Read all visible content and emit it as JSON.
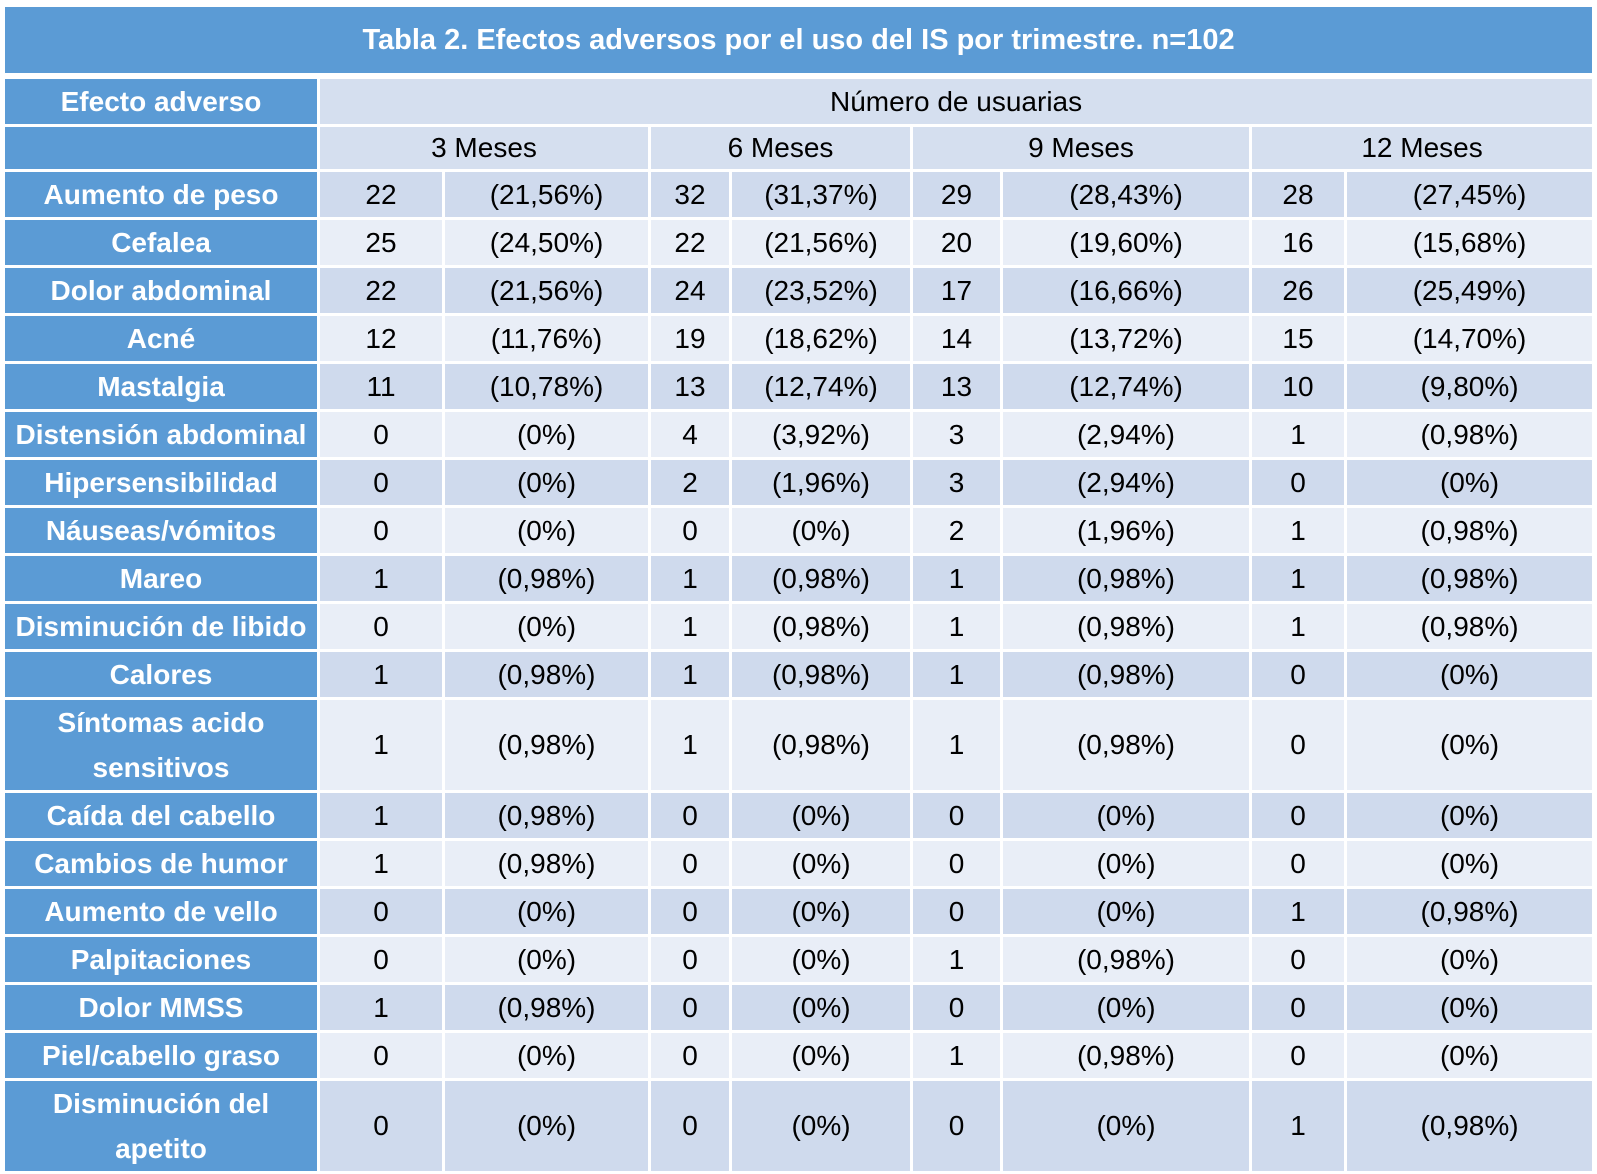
{
  "title": "Tabla 2. Efectos adversos por el uso del IS por trimestre. n=102",
  "header": {
    "col_label": "Efecto adverso",
    "group_label": "Número de usuarias",
    "periods": [
      "3 Meses",
      "6 Meses",
      "9 Meses",
      "12 Meses"
    ]
  },
  "rows": [
    {
      "label": "Aumento de peso",
      "values": [
        "22",
        "(21,56%)",
        "32",
        "(31,37%)",
        "29",
        "(28,43%)",
        "28",
        "(27,45%)"
      ]
    },
    {
      "label": "Cefalea",
      "values": [
        "25",
        "(24,50%)",
        "22",
        "(21,56%)",
        "20",
        "(19,60%)",
        "16",
        "(15,68%)"
      ]
    },
    {
      "label": "Dolor abdominal",
      "values": [
        "22",
        "(21,56%)",
        "24",
        "(23,52%)",
        "17",
        "(16,66%)",
        "26",
        "(25,49%)"
      ]
    },
    {
      "label": "Acné",
      "values": [
        "12",
        "(11,76%)",
        "19",
        "(18,62%)",
        "14",
        "(13,72%)",
        "15",
        "(14,70%)"
      ]
    },
    {
      "label": "Mastalgia",
      "values": [
        "11",
        "(10,78%)",
        "13",
        "(12,74%)",
        "13",
        "(12,74%)",
        "10",
        "(9,80%)"
      ]
    },
    {
      "label": "Distensión abdominal",
      "values": [
        "0",
        "(0%)",
        "4",
        "(3,92%)",
        "3",
        "(2,94%)",
        "1",
        "(0,98%)"
      ]
    },
    {
      "label": "Hipersensibilidad",
      "values": [
        "0",
        "(0%)",
        "2",
        "(1,96%)",
        "3",
        "(2,94%)",
        "0",
        "(0%)"
      ]
    },
    {
      "label": "Náuseas/vómitos",
      "values": [
        "0",
        "(0%)",
        "0",
        "(0%)",
        "2",
        "(1,96%)",
        "1",
        "(0,98%)"
      ]
    },
    {
      "label": "Mareo",
      "values": [
        "1",
        "(0,98%)",
        "1",
        "(0,98%)",
        "1",
        "(0,98%)",
        "1",
        "(0,98%)"
      ]
    },
    {
      "label": "Disminución de libido",
      "values": [
        "0",
        "(0%)",
        "1",
        "(0,98%)",
        "1",
        "(0,98%)",
        "1",
        "(0,98%)"
      ]
    },
    {
      "label": "Calores",
      "values": [
        "1",
        "(0,98%)",
        "1",
        "(0,98%)",
        "1",
        "(0,98%)",
        "0",
        "(0%)"
      ]
    },
    {
      "label": "Síntomas acido sensitivos",
      "values": [
        "1",
        "(0,98%)",
        "1",
        "(0,98%)",
        "1",
        "(0,98%)",
        "0",
        "(0%)"
      ]
    },
    {
      "label": "Caída del cabello",
      "values": [
        "1",
        "(0,98%)",
        "0",
        "(0%)",
        "0",
        "(0%)",
        "0",
        "(0%)"
      ]
    },
    {
      "label": "Cambios de humor",
      "values": [
        "1",
        "(0,98%)",
        "0",
        "(0%)",
        "0",
        "(0%)",
        "0",
        "(0%)"
      ]
    },
    {
      "label": "Aumento de vello",
      "values": [
        "0",
        "(0%)",
        "0",
        "(0%)",
        "0",
        "(0%)",
        "1",
        "(0,98%)"
      ]
    },
    {
      "label": "Palpitaciones",
      "values": [
        "0",
        "(0%)",
        "0",
        "(0%)",
        "1",
        "(0,98%)",
        "0",
        "(0%)"
      ]
    },
    {
      "label": "Dolor MMSS",
      "values": [
        "1",
        "(0,98%)",
        "0",
        "(0%)",
        "0",
        "(0%)",
        "0",
        "(0%)"
      ]
    },
    {
      "label": "Piel/cabello graso",
      "values": [
        "0",
        "(0%)",
        "0",
        "(0%)",
        "1",
        "(0,98%)",
        "0",
        "(0%)"
      ]
    },
    {
      "label": "Disminución del apetito",
      "values": [
        "0",
        "(0%)",
        "0",
        "(0%)",
        "0",
        "(0%)",
        "1",
        "(0,98%)"
      ]
    }
  ]
}
